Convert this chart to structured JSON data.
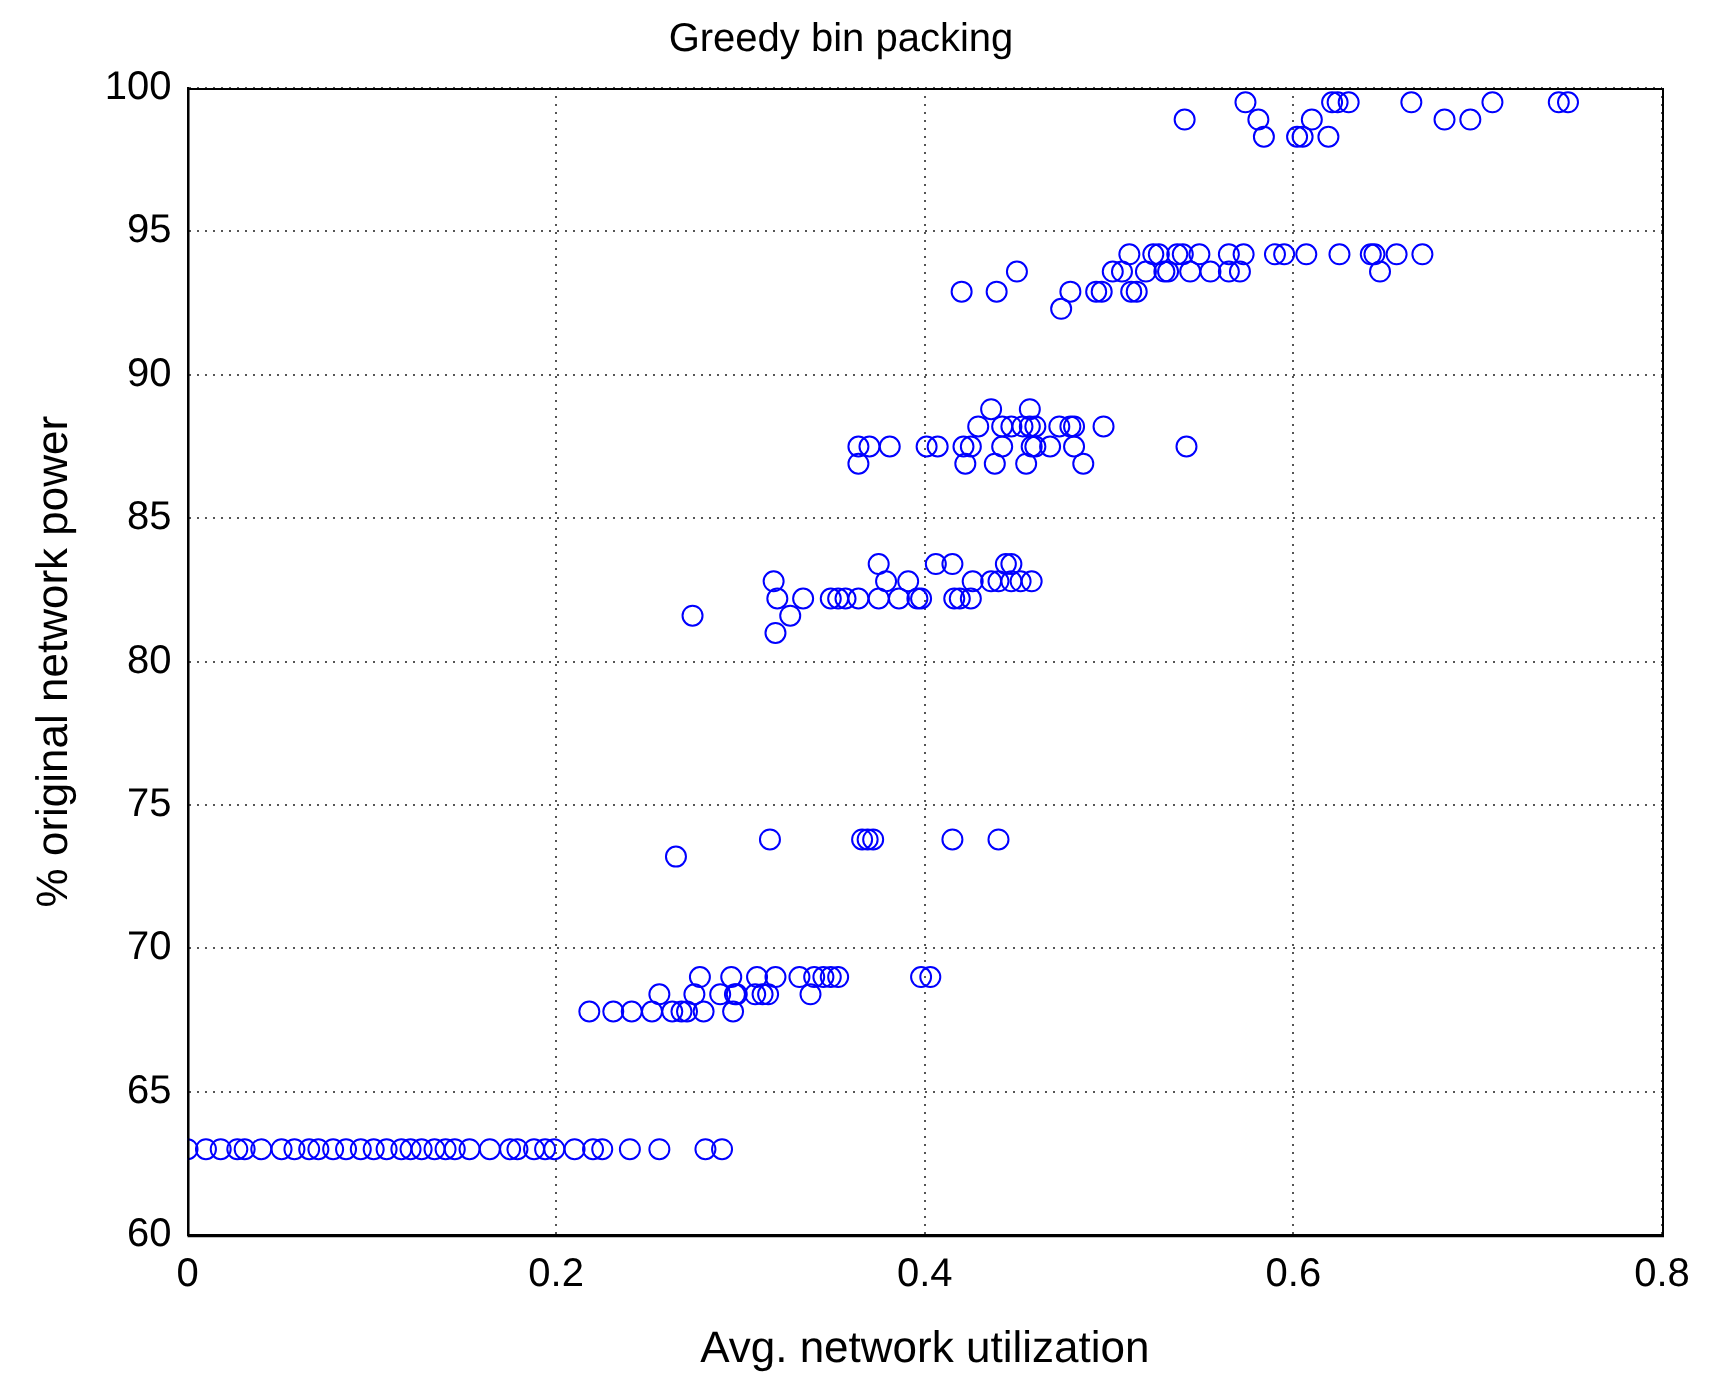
{
  "chart_data": {
    "type": "scatter",
    "title": "Greedy bin packing",
    "xlabel": "Avg. network utilization",
    "ylabel": "% original network power",
    "xlim": [
      0,
      0.8
    ],
    "xticks": [
      0,
      0.2,
      0.4,
      0.6,
      0.8
    ],
    "ylim": [
      60,
      100
    ],
    "yticks": [
      60,
      65,
      70,
      75,
      80,
      85,
      90,
      95,
      100
    ],
    "grid": true,
    "marker": "circle",
    "legend": false,
    "series": [
      {
        "color": "#0000ff",
        "x": [
          0.0,
          0.01,
          0.018,
          0.027,
          0.031,
          0.04,
          0.051,
          0.058,
          0.066,
          0.071,
          0.079,
          0.086,
          0.094,
          0.101,
          0.108,
          0.116,
          0.121,
          0.127,
          0.134,
          0.14,
          0.145,
          0.153,
          0.164,
          0.175,
          0.179,
          0.188,
          0.194,
          0.199,
          0.21,
          0.22,
          0.225,
          0.24,
          0.256,
          0.281,
          0.29,
          0.218,
          0.231,
          0.241,
          0.252,
          0.263,
          0.268,
          0.271,
          0.28,
          0.296,
          0.256,
          0.275,
          0.289,
          0.297,
          0.298,
          0.308,
          0.312,
          0.315,
          0.338,
          0.278,
          0.295,
          0.309,
          0.319,
          0.332,
          0.34,
          0.345,
          0.349,
          0.353,
          0.398,
          0.403,
          0.316,
          0.366,
          0.369,
          0.372,
          0.415,
          0.44,
          0.265,
          0.274,
          0.319,
          0.327,
          0.32,
          0.334,
          0.349,
          0.353,
          0.357,
          0.364,
          0.375,
          0.386,
          0.396,
          0.398,
          0.416,
          0.419,
          0.425,
          0.375,
          0.406,
          0.415,
          0.444,
          0.447,
          0.318,
          0.379,
          0.391,
          0.426,
          0.436,
          0.44,
          0.447,
          0.452,
          0.458,
          0.436,
          0.457,
          0.429,
          0.442,
          0.447,
          0.453,
          0.457,
          0.46,
          0.473,
          0.479,
          0.481,
          0.497,
          0.364,
          0.37,
          0.381,
          0.401,
          0.407,
          0.421,
          0.425,
          0.442,
          0.458,
          0.46,
          0.468,
          0.481,
          0.542,
          0.364,
          0.422,
          0.438,
          0.455,
          0.486,
          0.511,
          0.524,
          0.527,
          0.537,
          0.54,
          0.549,
          0.565,
          0.573,
          0.59,
          0.595,
          0.607,
          0.625,
          0.642,
          0.644,
          0.656,
          0.67,
          0.45,
          0.502,
          0.507,
          0.52,
          0.53,
          0.532,
          0.544,
          0.555,
          0.565,
          0.571,
          0.647,
          0.42,
          0.439,
          0.479,
          0.493,
          0.496,
          0.512,
          0.515,
          0.474,
          0.574,
          0.621,
          0.624,
          0.63,
          0.664,
          0.708,
          0.744,
          0.749,
          0.541,
          0.581,
          0.61,
          0.682,
          0.696,
          0.584,
          0.602,
          0.605,
          0.619
        ],
        "values": [
          63,
          63,
          63,
          63,
          63,
          63,
          63,
          63,
          63,
          63,
          63,
          63,
          63,
          63,
          63,
          63,
          63,
          63,
          63,
          63,
          63,
          63,
          63,
          63,
          63,
          63,
          63,
          63,
          63,
          63,
          63,
          63,
          63,
          63,
          63,
          67.8,
          67.8,
          67.8,
          67.8,
          67.8,
          67.8,
          67.8,
          67.8,
          67.8,
          68.4,
          68.4,
          68.4,
          68.4,
          68.4,
          68.4,
          68.4,
          68.4,
          68.4,
          69.0,
          69.0,
          69.0,
          69.0,
          69.0,
          69.0,
          69.0,
          69.0,
          69.0,
          69.0,
          69.0,
          73.8,
          73.8,
          73.8,
          73.8,
          73.8,
          73.8,
          73.2,
          81.6,
          81.0,
          81.6,
          82.2,
          82.2,
          82.2,
          82.2,
          82.2,
          82.2,
          82.2,
          82.2,
          82.2,
          82.2,
          82.2,
          82.2,
          82.2,
          83.4,
          83.4,
          83.4,
          83.4,
          83.4,
          82.8,
          82.8,
          82.8,
          82.8,
          82.8,
          82.8,
          82.8,
          82.8,
          82.8,
          88.8,
          88.8,
          88.2,
          88.2,
          88.2,
          88.2,
          88.2,
          88.2,
          88.2,
          88.2,
          88.2,
          88.2,
          87.5,
          87.5,
          87.5,
          87.5,
          87.5,
          87.5,
          87.5,
          87.5,
          87.5,
          87.5,
          87.5,
          87.5,
          87.5,
          86.9,
          86.9,
          86.9,
          86.9,
          86.9,
          94.2,
          94.2,
          94.2,
          94.2,
          94.2,
          94.2,
          94.2,
          94.2,
          94.2,
          94.2,
          94.2,
          94.2,
          94.2,
          94.2,
          94.2,
          94.2,
          93.6,
          93.6,
          93.6,
          93.6,
          93.6,
          93.6,
          93.6,
          93.6,
          93.6,
          93.6,
          93.6,
          92.9,
          92.9,
          92.9,
          92.9,
          92.9,
          92.9,
          92.9,
          92.3,
          99.5,
          99.5,
          99.5,
          99.5,
          99.5,
          99.5,
          99.5,
          99.5,
          98.9,
          98.9,
          98.9,
          98.9,
          98.9,
          98.3,
          98.3,
          98.3,
          98.3
        ]
      }
    ]
  }
}
